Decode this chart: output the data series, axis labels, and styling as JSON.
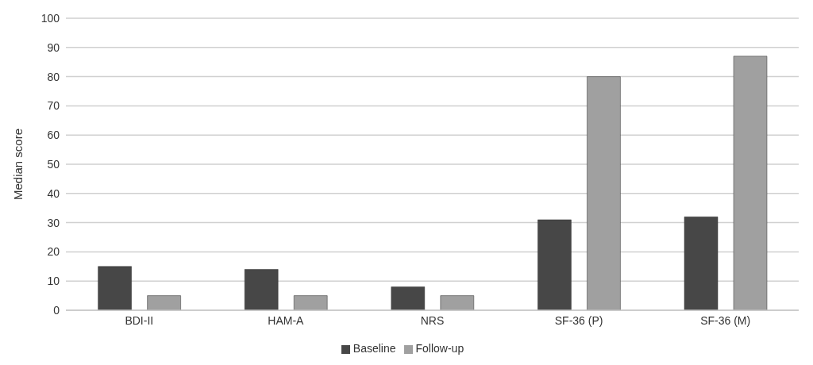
{
  "chart_data": {
    "type": "bar",
    "ylabel": "Median score",
    "categories": [
      "BDI-II",
      "HAM-A",
      "NRS",
      "SF-36 (P)",
      "SF-36 (M)"
    ],
    "series": [
      {
        "name": "Baseline",
        "color": "#474747",
        "values": [
          15,
          14,
          8,
          31,
          32
        ]
      },
      {
        "name": "Follow-up",
        "color": "#a0a0a0",
        "values": [
          5,
          5,
          5,
          80,
          87
        ]
      }
    ],
    "ylim": [
      0,
      100
    ],
    "yticks": [
      0,
      10,
      20,
      30,
      40,
      50,
      60,
      70,
      80,
      90,
      100
    ],
    "grid": "y",
    "legend": "bottom"
  }
}
